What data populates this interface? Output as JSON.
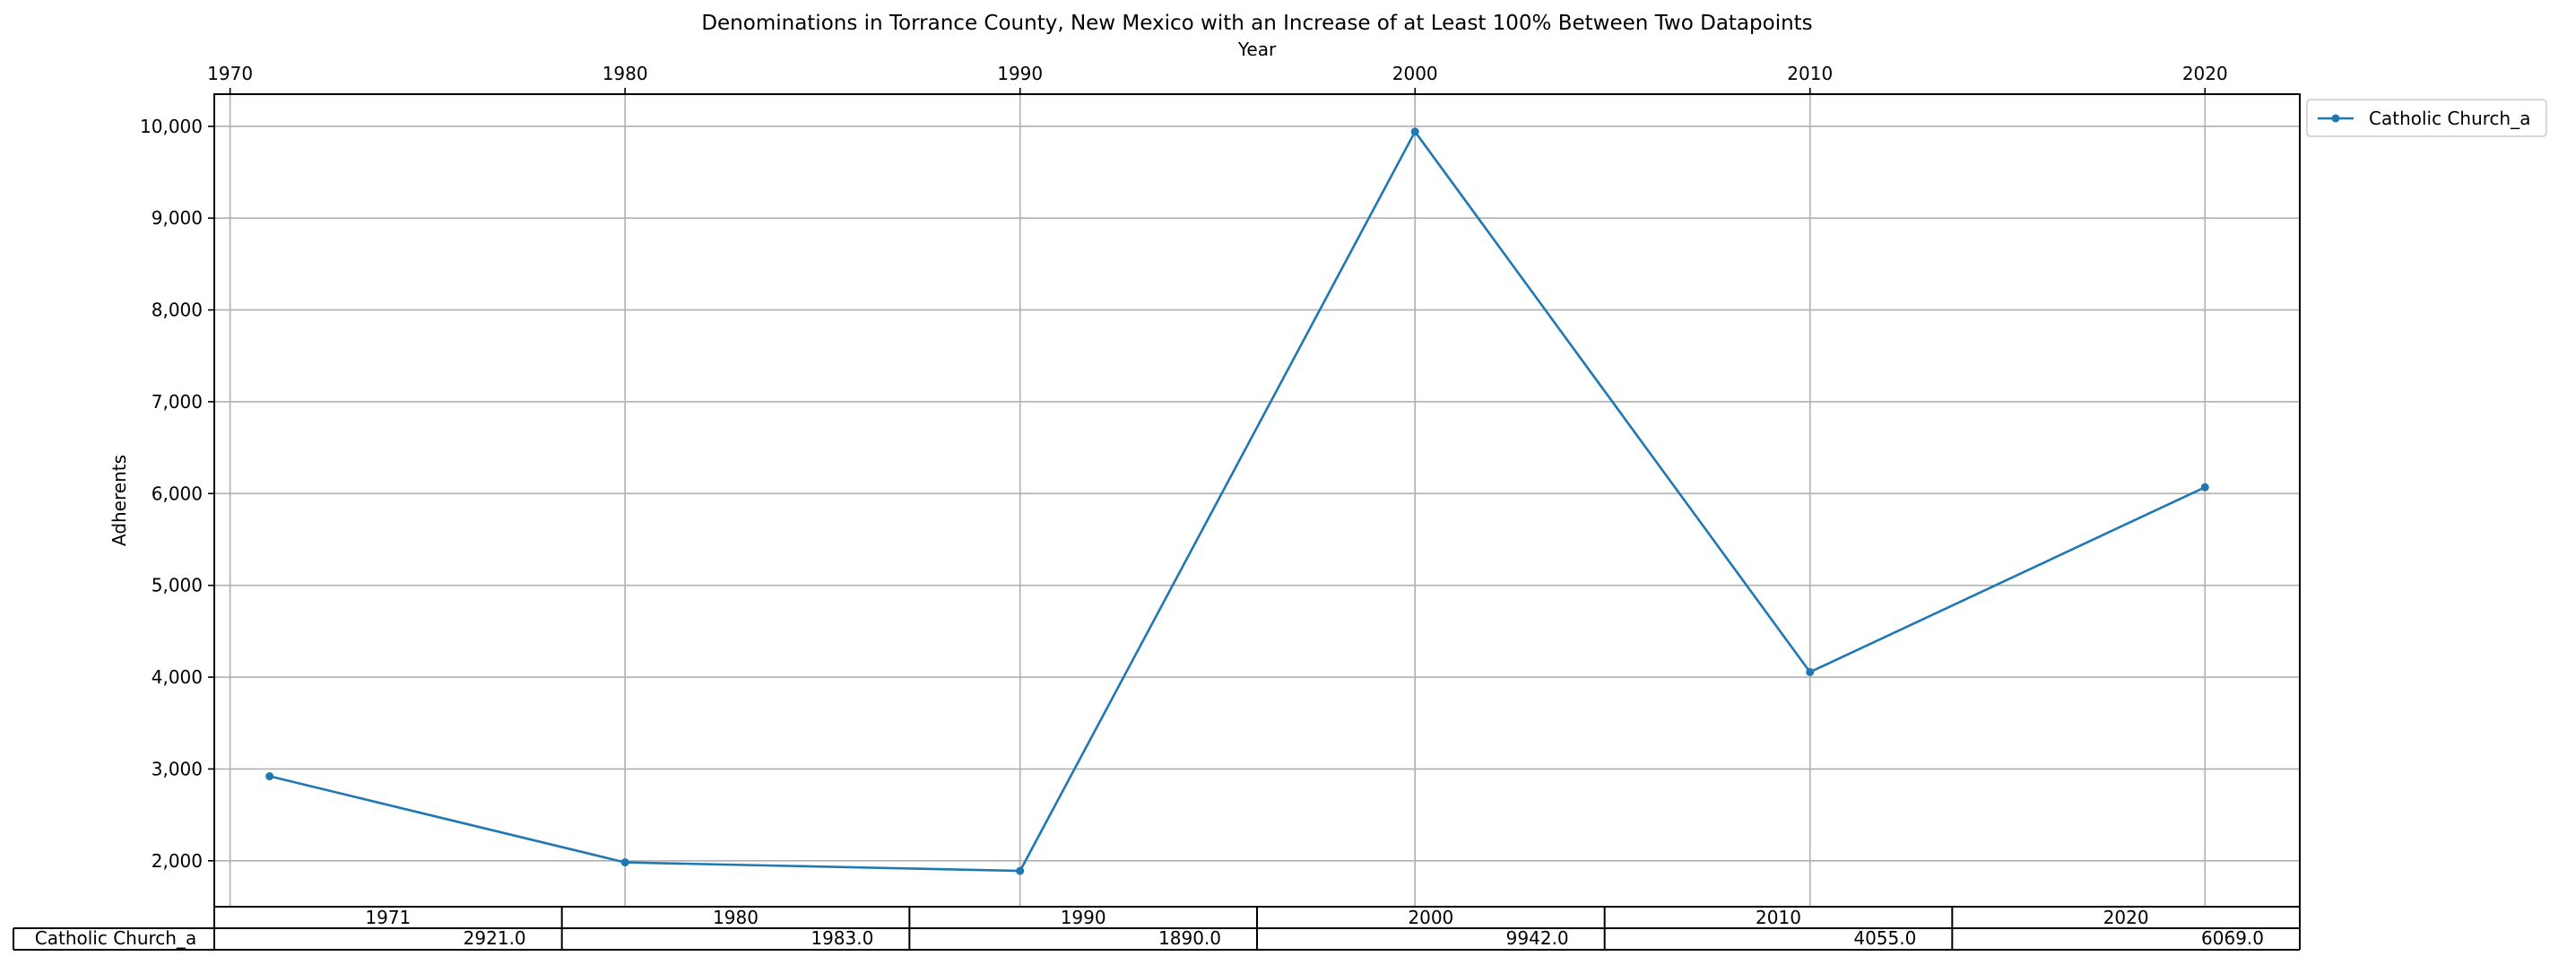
{
  "chart_data": {
    "type": "line",
    "title": "Denominations in Torrance County, New Mexico with an Increase of at Least 100% Between Two Datapoints",
    "xlabel": "Year",
    "ylabel": "Adherents",
    "x": [
      1971,
      1980,
      1990,
      2000,
      2010,
      2020
    ],
    "series": [
      {
        "name": "Catholic Church_a",
        "values": [
          2921,
          1983,
          1890,
          9942,
          4055,
          6069
        ],
        "color": "#1f77b4"
      }
    ],
    "xlim": [
      1969.6,
      2022.4
    ],
    "ylim": [
      1500,
      10350
    ],
    "x_ticks": [
      1970,
      1980,
      1990,
      2000,
      2010,
      2020
    ],
    "x_tick_labels": [
      "1970",
      "1980",
      "1990",
      "2000",
      "2010",
      "2020"
    ],
    "y_ticks": [
      2000,
      3000,
      4000,
      5000,
      6000,
      7000,
      8000,
      9000,
      10000
    ],
    "y_tick_labels": [
      "2,000",
      "3,000",
      "4,000",
      "5,000",
      "6,000",
      "7,000",
      "8,000",
      "9,000",
      "10,000"
    ],
    "x_axis_position": "top",
    "grid": true,
    "legend": {
      "placement": "outside-top-right",
      "entries": [
        "Catholic Church_a"
      ]
    },
    "table": {
      "col_labels": [
        "1971",
        "1980",
        "1990",
        "2000",
        "2010",
        "2020"
      ],
      "row_label": "Catholic Church_a",
      "cells": [
        "2921.0",
        "1983.0",
        "1890.0",
        "9942.0",
        "4055.0",
        "6069.0"
      ]
    }
  }
}
